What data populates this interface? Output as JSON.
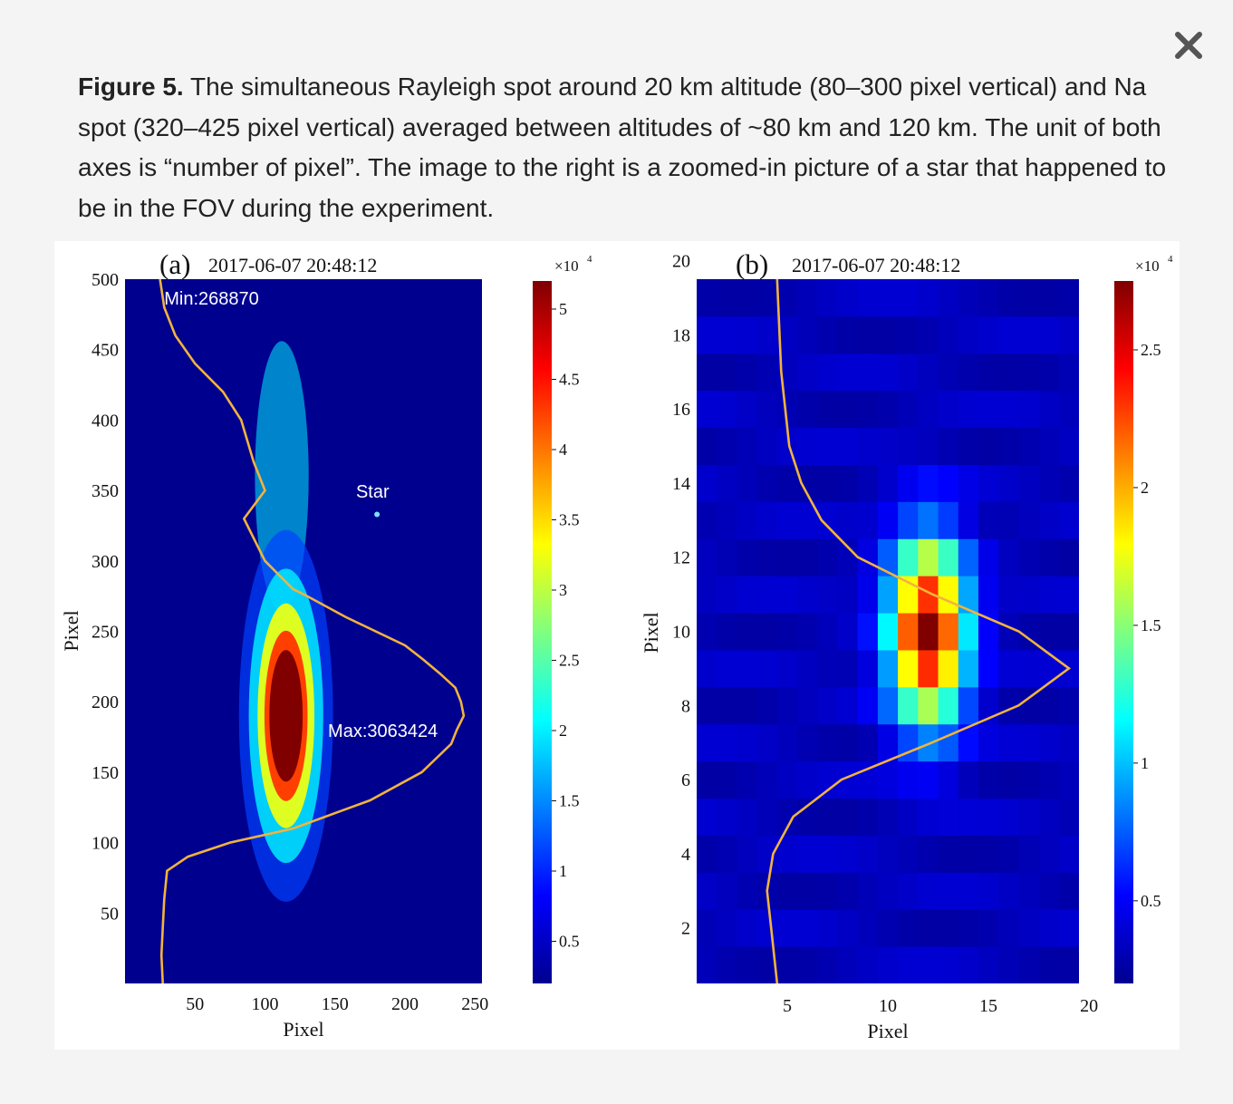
{
  "dialog": {
    "close_label": "close",
    "close_icon": "close-icon"
  },
  "caption": {
    "label": "Figure 5.",
    "text": " The simultaneous Rayleigh spot around 20 km altitude (80–300 pixel vertical) and Na spot (320–425 pixel vertical) averaged between altitudes of ~80 km and 120 km. The unit of both axes is “number of pixel”. The image to the right is a zoomed-in picture of a star that happened to be in the FOV during the experiment."
  },
  "colors": {
    "jet_low": "#00008f",
    "jet_high": "#800000",
    "profile_line": "#f2b33d",
    "annotation": "#ffffff"
  },
  "chart_data": [
    {
      "type": "heatmap",
      "panel_label": "(a)",
      "title": "2017-06-07 20:48:12",
      "xlabel": "Pixel",
      "ylabel": "Pixel",
      "xlim": [
        0,
        255
      ],
      "ylim": [
        0,
        500
      ],
      "xticks": [
        50,
        100,
        150,
        200,
        250
      ],
      "yticks": [
        50,
        100,
        150,
        200,
        250,
        300,
        350,
        400,
        450,
        500
      ],
      "colorbar": {
        "multiplier": "×10",
        "exponent": "4",
        "range": [
          0.2,
          5.2
        ],
        "ticks": [
          0.5,
          1,
          1.5,
          2,
          2.5,
          3,
          3.5,
          4,
          4.5,
          5
        ]
      },
      "spot": {
        "center_x": 115,
        "center_y": 190,
        "sigma_x": 14,
        "sigma_y": 55,
        "peak": 5.2
      },
      "na_layer": {
        "center_x": 112,
        "center_y": 360,
        "sigma_x": 12,
        "sigma_y": 60,
        "peak": 2.0
      },
      "star": {
        "x": 180,
        "y": 333
      },
      "annotations": [
        {
          "text": "Min:268870",
          "x": 28,
          "y": 482
        },
        {
          "text": "Max:3063424",
          "x": 145,
          "y": 175
        },
        {
          "text": "Star",
          "x": 165,
          "y": 345
        }
      ],
      "profile": {
        "y": [
          0,
          20,
          40,
          60,
          80,
          90,
          100,
          110,
          130,
          150,
          170,
          180,
          190,
          200,
          210,
          220,
          230,
          240,
          260,
          275,
          280,
          300,
          330,
          350,
          370,
          400,
          420,
          440,
          460,
          480,
          500
        ],
        "x": [
          27,
          26,
          27,
          28,
          30,
          45,
          75,
          120,
          175,
          212,
          233,
          237,
          242,
          240,
          236,
          225,
          213,
          200,
          158,
          130,
          120,
          100,
          85,
          100,
          92,
          83,
          70,
          50,
          36,
          28,
          25
        ]
      }
    },
    {
      "type": "heatmap",
      "panel_label": "(b)",
      "title": "2017-06-07 20:48:12",
      "xlabel": "Pixel",
      "ylabel": "Pixel",
      "xlim": [
        0.5,
        19.5
      ],
      "ylim": [
        0.5,
        19.5
      ],
      "xticks": [
        5,
        10,
        15,
        20
      ],
      "yticks": [
        2,
        4,
        6,
        8,
        10,
        12,
        14,
        16,
        18,
        20
      ],
      "colorbar": {
        "multiplier": "×10",
        "exponent": "4",
        "range": [
          0.2,
          2.75
        ],
        "ticks": [
          0.5,
          1,
          1.5,
          2,
          2.5
        ]
      },
      "star": {
        "center_x": 12,
        "center_y": 10,
        "sigma_x": 1.3,
        "sigma_y": 1.7,
        "peak": 2.75,
        "floor": 0.35
      },
      "profile": {
        "y": [
          0.5,
          2,
          3,
          4,
          5,
          6,
          7,
          8,
          9,
          10,
          11,
          12,
          13,
          14,
          15,
          17,
          19.5
        ],
        "x": [
          4.5,
          4.2,
          4.0,
          4.3,
          5.3,
          7.7,
          12.2,
          16.5,
          19.0,
          16.5,
          12.2,
          8.5,
          6.7,
          5.7,
          5.1,
          4.7,
          4.5
        ]
      }
    }
  ]
}
